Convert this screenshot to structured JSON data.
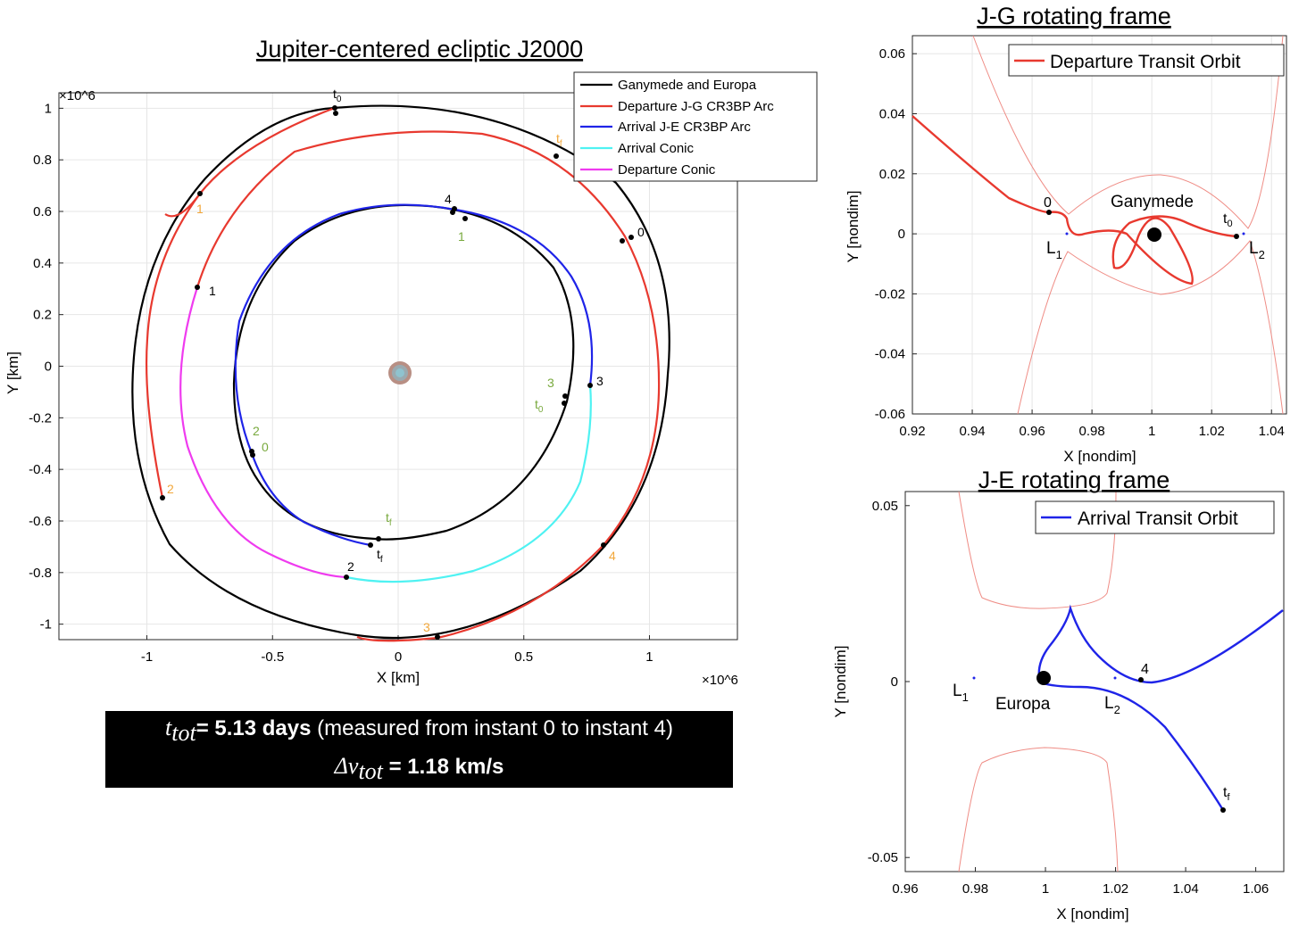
{
  "chart_data": [
    {
      "type": "line",
      "title": "Jupiter-centered ecliptic J2000",
      "xlabel": "X [km]",
      "ylabel": "Y [km]",
      "x_exponent": "×10^6",
      "y_exponent": "×10^6",
      "xlim": [
        -1.35,
        1.35
      ],
      "ylim": [
        -1.06,
        1.06
      ],
      "xticks": [
        -1,
        -0.5,
        0,
        0.5,
        1
      ],
      "xtick_labels": [
        "-1",
        "-0.5",
        "0",
        "0.5",
        "1"
      ],
      "yticks": [
        -1,
        -0.8,
        -0.6,
        -0.4,
        -0.2,
        0,
        0.2,
        0.4,
        0.6,
        0.8,
        1
      ],
      "ytick_labels": [
        "-1",
        "-0.8",
        "-0.6",
        "-0.4",
        "-0.2",
        "0",
        "0.2",
        "0.4",
        "0.6",
        "0.8",
        "1"
      ],
      "grid": true,
      "legend_position": "top-right",
      "series": [
        {
          "name": "Ganymede and Europa",
          "color": "#000000",
          "description_values": {
            "ganymede_radius_1e6km": 1.07,
            "europa_radius_1e6km": 0.67
          }
        },
        {
          "name": "Departure J-G CR3BP Arc",
          "color": "#e8392f"
        },
        {
          "name": "Arrival J-E CR3BP Arc",
          "color": "#1f24e8"
        },
        {
          "name": "Arrival Conic",
          "color": "#4ff2f2"
        },
        {
          "name": "Departure Conic",
          "color": "#ef3bef"
        }
      ],
      "annotations_black": [
        {
          "text": "t",
          "sub": "0",
          "x": -0.26,
          "y": 1.08
        },
        {
          "text": "0",
          "x": 0.96,
          "y": 0.56
        },
        {
          "text": "1",
          "x": -0.74,
          "y": 0.32
        },
        {
          "text": "4",
          "x": 0.2,
          "y": 0.68
        },
        {
          "text": "3",
          "x": 0.8,
          "y": -0.04
        },
        {
          "text": "2",
          "x": -0.21,
          "y": -0.77
        },
        {
          "text": "t",
          "sub": "f",
          "x": -0.09,
          "y": -0.72
        }
      ],
      "annotations_orange": [
        {
          "text": "t",
          "sub": "f",
          "x": 0.64,
          "y": 0.93
        },
        {
          "text": "1",
          "x": -0.78,
          "y": 0.64
        },
        {
          "text": "2",
          "x": -0.93,
          "y": -0.47
        },
        {
          "text": "4",
          "x": 0.85,
          "y": -0.76
        },
        {
          "text": "3",
          "x": 0.11,
          "y": -1.01
        }
      ],
      "annotations_green": [
        {
          "text": "1",
          "x": 0.25,
          "y": 0.54
        },
        {
          "text": "3",
          "x": 0.6,
          "y": -0.03
        },
        {
          "text": "t",
          "sub": "0",
          "x": 0.54,
          "y": -0.14
        },
        {
          "text": "2",
          "x": -0.6,
          "y": -0.23
        },
        {
          "text": "0",
          "x": -0.57,
          "y": -0.29
        },
        {
          "text": "t",
          "sub": "f",
          "x": -0.05,
          "y": -0.59
        }
      ]
    },
    {
      "type": "line",
      "title": "J-G rotating frame",
      "xlabel": "X [nondim]",
      "ylabel": "Y [nondim]",
      "xlim": [
        0.92,
        1.045
      ],
      "ylim": [
        -0.06,
        0.066
      ],
      "xticks": [
        0.92,
        0.94,
        0.96,
        0.98,
        1,
        1.02,
        1.04
      ],
      "xtick_labels": [
        "0.92",
        "0.94",
        "0.96",
        "0.98",
        "1",
        "1.02",
        "1.04"
      ],
      "yticks": [
        -0.06,
        -0.04,
        -0.02,
        0,
        0.02,
        0.04,
        0.06
      ],
      "ytick_labels": [
        "-0.06",
        "-0.04",
        "-0.02",
        "0",
        "0.02",
        "0.04",
        "0.06"
      ],
      "grid": true,
      "legend_position": "top-right",
      "series": [
        {
          "name": "Departure Transit Orbit",
          "color": "#e8392f"
        }
      ],
      "annotations": [
        {
          "text": "Ganymede",
          "x": 1.002,
          "y": 0.01
        },
        {
          "text": "0",
          "x": 0.964,
          "y": 0.009
        },
        {
          "text": "t",
          "sub": "0",
          "x": 1.026,
          "y": 0.004
        },
        {
          "text": "L",
          "sub": "1",
          "x": 0.968,
          "y": -0.005
        },
        {
          "text": "L",
          "sub": "2",
          "x": 1.034,
          "y": -0.005
        }
      ]
    },
    {
      "type": "line",
      "title": "J-E rotating frame",
      "xlabel": "X [nondim]",
      "ylabel": "Y [nondim]",
      "xlim": [
        0.96,
        1.068
      ],
      "ylim": [
        -0.054,
        0.054
      ],
      "xticks": [
        0.96,
        0.98,
        1,
        1.02,
        1.04,
        1.06
      ],
      "xtick_labels": [
        "0.96",
        "0.98",
        "1",
        "1.02",
        "1.04",
        "1.06"
      ],
      "yticks": [
        -0.05,
        0,
        0.05
      ],
      "ytick_labels": [
        "-0.05",
        "0",
        "0.05"
      ],
      "grid": false,
      "legend_position": "top-right",
      "series": [
        {
          "name": "Arrival Transit Orbit",
          "color": "#1f24e8"
        }
      ],
      "annotations": [
        {
          "text": "Europa",
          "x": 0.999,
          "y": -0.008
        },
        {
          "text": "4",
          "x": 1.029,
          "y": 0.002
        },
        {
          "text": "t",
          "sub": "f",
          "x": 1.052,
          "y": -0.036
        },
        {
          "text": "L",
          "sub": "1",
          "x": 0.976,
          "y": -0.004
        },
        {
          "text": "L",
          "sub": "2",
          "x": 1.018,
          "y": -0.008
        }
      ]
    }
  ],
  "summary": {
    "t_symbol": "t",
    "t_sub": "tot",
    "t_value": "= 5.13 days",
    "t_note": "(measured from instant 0 to instant 4)",
    "dv_symbol": "Δv",
    "dv_sub": "tot",
    "dv_value": "= 1.18 km/s"
  }
}
